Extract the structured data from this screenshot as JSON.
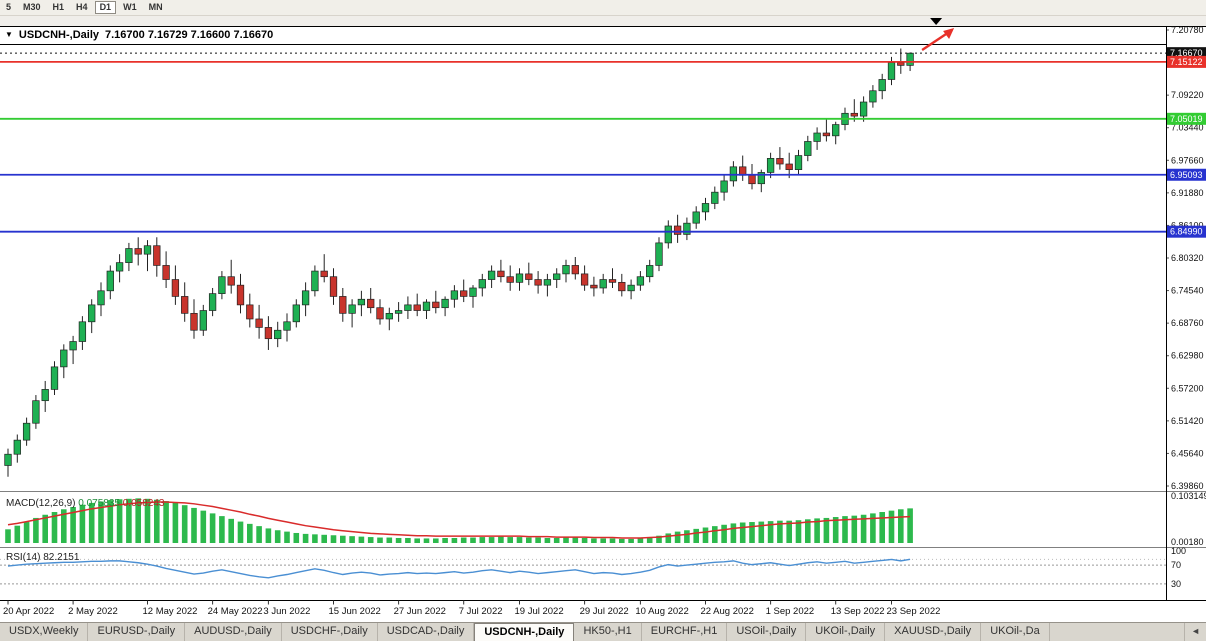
{
  "toolbar": {
    "timeframes": [
      "5",
      "M30",
      "H1",
      "H4",
      "D1",
      "W1",
      "MN"
    ],
    "active": "D1"
  },
  "chart": {
    "title": "USDCNH-,Daily",
    "ohlc": "7.16700 7.16729 7.16600 7.16670",
    "dropdown_icon": "▼"
  },
  "chart_data": {
    "type": "candlestick",
    "symbol": "USDCNH-,Daily",
    "open": 7.167,
    "high": 7.16729,
    "low": 7.166,
    "close": 7.1667,
    "y_range": [
      6.3986,
      7.2078
    ],
    "y_axis_labels": [
      "7.20780",
      "7.09220",
      "7.03440",
      "6.97660",
      "6.91880",
      "6.86100",
      "6.80320",
      "6.74540",
      "6.68760",
      "6.62980",
      "6.57200",
      "6.51420",
      "6.45640",
      "6.39860"
    ],
    "colors": {
      "up": "#1eb053",
      "down": "#c8342c",
      "outline": "#222222",
      "macd_hist": "#2db94d",
      "macd_signal": "#d92b2b",
      "rsi": "#4a8fd3",
      "arrow": "#e8312a"
    },
    "price_lines": [
      {
        "name": "current-price-line",
        "price": 7.1667,
        "label": "7.16670",
        "color": "#111111",
        "style": "dotted"
      },
      {
        "name": "resistance-line",
        "price": 7.15122,
        "label": "7.15122",
        "color": "#e8312a",
        "style": "solid"
      },
      {
        "name": "support-line-green",
        "price": 7.05019,
        "label": "7.05019",
        "color": "#33cc33",
        "style": "solid"
      },
      {
        "name": "support-line-blue-1",
        "price": 6.95093,
        "label": "6.95093",
        "color": "#2733cf",
        "style": "solid"
      },
      {
        "name": "support-line-blue-2",
        "price": 6.8499,
        "label": "6.84990",
        "color": "#2733cf",
        "style": "solid"
      }
    ],
    "candles": [
      [
        6.435,
        6.465,
        6.415,
        6.455
      ],
      [
        6.455,
        6.49,
        6.44,
        6.48
      ],
      [
        6.48,
        6.52,
        6.47,
        6.51
      ],
      [
        6.51,
        6.56,
        6.5,
        6.55
      ],
      [
        6.55,
        6.585,
        6.53,
        6.57
      ],
      [
        6.57,
        6.62,
        6.56,
        6.61
      ],
      [
        6.61,
        6.65,
        6.59,
        6.64
      ],
      [
        6.64,
        6.665,
        6.615,
        6.655
      ],
      [
        6.655,
        6.7,
        6.64,
        6.69
      ],
      [
        6.69,
        6.73,
        6.67,
        6.72
      ],
      [
        6.72,
        6.76,
        6.7,
        6.745
      ],
      [
        6.745,
        6.79,
        6.73,
        6.78
      ],
      [
        6.78,
        6.81,
        6.76,
        6.795
      ],
      [
        6.795,
        6.83,
        6.78,
        6.82
      ],
      [
        6.82,
        6.84,
        6.79,
        6.81
      ],
      [
        6.81,
        6.835,
        6.78,
        6.825
      ],
      [
        6.825,
        6.84,
        6.77,
        6.79
      ],
      [
        6.79,
        6.815,
        6.75,
        6.765
      ],
      [
        6.765,
        6.79,
        6.72,
        6.735
      ],
      [
        6.735,
        6.76,
        6.69,
        6.705
      ],
      [
        6.705,
        6.73,
        6.66,
        6.675
      ],
      [
        6.675,
        6.72,
        6.665,
        6.71
      ],
      [
        6.71,
        6.75,
        6.7,
        6.74
      ],
      [
        6.74,
        6.78,
        6.73,
        6.77
      ],
      [
        6.77,
        6.8,
        6.74,
        6.755
      ],
      [
        6.755,
        6.775,
        6.705,
        6.72
      ],
      [
        6.72,
        6.74,
        6.68,
        6.695
      ],
      [
        6.695,
        6.72,
        6.66,
        6.68
      ],
      [
        6.68,
        6.7,
        6.64,
        6.66
      ],
      [
        6.66,
        6.69,
        6.645,
        6.675
      ],
      [
        6.675,
        6.705,
        6.655,
        6.69
      ],
      [
        6.69,
        6.73,
        6.68,
        6.72
      ],
      [
        6.72,
        6.76,
        6.7,
        6.745
      ],
      [
        6.745,
        6.79,
        6.735,
        6.78
      ],
      [
        6.78,
        6.81,
        6.76,
        6.77
      ],
      [
        6.77,
        6.785,
        6.72,
        6.735
      ],
      [
        6.735,
        6.75,
        6.69,
        6.705
      ],
      [
        6.705,
        6.73,
        6.68,
        6.72
      ],
      [
        6.72,
        6.745,
        6.7,
        6.73
      ],
      [
        6.73,
        6.75,
        6.705,
        6.715
      ],
      [
        6.715,
        6.73,
        6.685,
        6.695
      ],
      [
        6.695,
        6.715,
        6.675,
        6.705
      ],
      [
        6.705,
        6.725,
        6.69,
        6.71
      ],
      [
        6.71,
        6.735,
        6.695,
        6.72
      ],
      [
        6.72,
        6.74,
        6.7,
        6.71
      ],
      [
        6.71,
        6.73,
        6.695,
        6.725
      ],
      [
        6.725,
        6.745,
        6.705,
        6.715
      ],
      [
        6.715,
        6.735,
        6.7,
        6.73
      ],
      [
        6.73,
        6.755,
        6.715,
        6.745
      ],
      [
        6.745,
        6.765,
        6.725,
        6.735
      ],
      [
        6.735,
        6.755,
        6.715,
        6.75
      ],
      [
        6.75,
        6.775,
        6.735,
        6.765
      ],
      [
        6.765,
        6.79,
        6.75,
        6.78
      ],
      [
        6.78,
        6.8,
        6.76,
        6.77
      ],
      [
        6.77,
        6.79,
        6.745,
        6.76
      ],
      [
        6.76,
        6.785,
        6.745,
        6.775
      ],
      [
        6.775,
        6.795,
        6.755,
        6.765
      ],
      [
        6.765,
        6.78,
        6.74,
        6.755
      ],
      [
        6.755,
        6.775,
        6.735,
        6.765
      ],
      [
        6.765,
        6.785,
        6.75,
        6.775
      ],
      [
        6.775,
        6.8,
        6.76,
        6.79
      ],
      [
        6.79,
        6.805,
        6.765,
        6.775
      ],
      [
        6.775,
        6.79,
        6.745,
        6.755
      ],
      [
        6.755,
        6.77,
        6.735,
        6.75
      ],
      [
        6.75,
        6.775,
        6.74,
        6.765
      ],
      [
        6.765,
        6.785,
        6.75,
        6.76
      ],
      [
        6.76,
        6.775,
        6.735,
        6.745
      ],
      [
        6.745,
        6.765,
        6.73,
        6.755
      ],
      [
        6.755,
        6.78,
        6.745,
        6.77
      ],
      [
        6.77,
        6.8,
        6.76,
        6.79
      ],
      [
        6.79,
        6.84,
        6.78,
        6.83
      ],
      [
        6.83,
        6.87,
        6.82,
        6.86
      ],
      [
        6.86,
        6.88,
        6.83,
        6.845
      ],
      [
        6.845,
        6.875,
        6.835,
        6.865
      ],
      [
        6.865,
        6.895,
        6.855,
        6.885
      ],
      [
        6.885,
        6.91,
        6.87,
        6.9
      ],
      [
        6.9,
        6.93,
        6.89,
        6.92
      ],
      [
        6.92,
        6.95,
        6.905,
        6.94
      ],
      [
        6.94,
        6.975,
        6.93,
        6.965
      ],
      [
        6.965,
        6.985,
        6.94,
        6.95
      ],
      [
        6.95,
        6.97,
        6.925,
        6.935
      ],
      [
        6.935,
        6.96,
        6.92,
        6.955
      ],
      [
        6.955,
        6.99,
        6.945,
        6.98
      ],
      [
        6.98,
        7.0,
        6.96,
        6.97
      ],
      [
        6.97,
        6.99,
        6.945,
        6.96
      ],
      [
        6.96,
        6.995,
        6.95,
        6.985
      ],
      [
        6.985,
        7.02,
        6.975,
        7.01
      ],
      [
        7.01,
        7.035,
        6.995,
        7.025
      ],
      [
        7.025,
        7.05,
        7.01,
        7.02
      ],
      [
        7.02,
        7.045,
        7.005,
        7.04
      ],
      [
        7.04,
        7.07,
        7.03,
        7.06
      ],
      [
        7.06,
        7.085,
        7.045,
        7.055
      ],
      [
        7.055,
        7.09,
        7.045,
        7.08
      ],
      [
        7.08,
        7.11,
        7.07,
        7.1
      ],
      [
        7.1,
        7.13,
        7.085,
        7.12
      ],
      [
        7.12,
        7.16,
        7.11,
        7.15
      ],
      [
        7.15,
        7.175,
        7.13,
        7.145
      ],
      [
        7.145,
        7.168,
        7.135,
        7.1667
      ]
    ],
    "date_labels": [
      {
        "i": 0,
        "label": "20 Apr 2022"
      },
      {
        "i": 7,
        "label": "2 May 2022"
      },
      {
        "i": 15,
        "label": "12 May 2022"
      },
      {
        "i": 22,
        "label": "24 May 2022"
      },
      {
        "i": 28,
        "label": "3 Jun 2022"
      },
      {
        "i": 35,
        "label": "15 Jun 2022"
      },
      {
        "i": 42,
        "label": "27 Jun 2022"
      },
      {
        "i": 49,
        "label": "7 Jul 2022"
      },
      {
        "i": 55,
        "label": "19 Jul 2022"
      },
      {
        "i": 62,
        "label": "29 Jul 2022"
      },
      {
        "i": 68,
        "label": "10 Aug 2022"
      },
      {
        "i": 75,
        "label": "22 Aug 2022"
      },
      {
        "i": 82,
        "label": "1 Sep 2022"
      },
      {
        "i": 89,
        "label": "13 Sep 2022"
      },
      {
        "i": 95,
        "label": "23 Sep 2022"
      }
    ],
    "macd": {
      "label": "MACD(12,26,9)",
      "value_main": "0.075835",
      "value_signal": "0.058243",
      "scale_max": 0.103149,
      "axis_labels": [
        {
          "text": "0.103149",
          "value": 0.103149
        },
        {
          "text": "0.00180",
          "value": 0.0018
        }
      ],
      "hist": [
        0.03,
        0.038,
        0.046,
        0.055,
        0.062,
        0.068,
        0.074,
        0.079,
        0.084,
        0.088,
        0.091,
        0.094,
        0.096,
        0.097,
        0.098,
        0.097,
        0.095,
        0.092,
        0.088,
        0.083,
        0.077,
        0.071,
        0.065,
        0.059,
        0.053,
        0.047,
        0.042,
        0.037,
        0.032,
        0.028,
        0.025,
        0.022,
        0.02,
        0.019,
        0.018,
        0.017,
        0.016,
        0.015,
        0.014,
        0.013,
        0.012,
        0.012,
        0.011,
        0.011,
        0.01,
        0.01,
        0.01,
        0.011,
        0.011,
        0.012,
        0.012,
        0.013,
        0.013,
        0.014,
        0.013,
        0.013,
        0.012,
        0.012,
        0.011,
        0.011,
        0.012,
        0.012,
        0.011,
        0.01,
        0.01,
        0.01,
        0.009,
        0.009,
        0.01,
        0.012,
        0.016,
        0.021,
        0.025,
        0.028,
        0.031,
        0.034,
        0.037,
        0.04,
        0.043,
        0.045,
        0.046,
        0.047,
        0.048,
        0.049,
        0.049,
        0.05,
        0.052,
        0.054,
        0.055,
        0.057,
        0.059,
        0.06,
        0.062,
        0.065,
        0.068,
        0.071,
        0.074,
        0.076
      ],
      "signal": [
        0.04,
        0.043,
        0.047,
        0.051,
        0.055,
        0.059,
        0.063,
        0.067,
        0.071,
        0.075,
        0.078,
        0.081,
        0.084,
        0.086,
        0.088,
        0.089,
        0.09,
        0.09,
        0.089,
        0.088,
        0.086,
        0.083,
        0.08,
        0.076,
        0.072,
        0.068,
        0.063,
        0.059,
        0.054,
        0.05,
        0.046,
        0.042,
        0.038,
        0.035,
        0.032,
        0.029,
        0.027,
        0.025,
        0.023,
        0.021,
        0.02,
        0.019,
        0.018,
        0.017,
        0.016,
        0.016,
        0.015,
        0.015,
        0.015,
        0.015,
        0.015,
        0.015,
        0.015,
        0.015,
        0.015,
        0.015,
        0.014,
        0.014,
        0.014,
        0.013,
        0.013,
        0.013,
        0.013,
        0.012,
        0.012,
        0.012,
        0.011,
        0.011,
        0.011,
        0.012,
        0.013,
        0.015,
        0.017,
        0.019,
        0.022,
        0.024,
        0.027,
        0.029,
        0.032,
        0.034,
        0.036,
        0.038,
        0.04,
        0.042,
        0.043,
        0.044,
        0.046,
        0.047,
        0.049,
        0.05,
        0.051,
        0.052,
        0.053,
        0.054,
        0.055,
        0.056,
        0.057,
        0.058
      ]
    },
    "rsi": {
      "label": "RSI(14)",
      "value": "82.2151",
      "current_level": 82.2151,
      "levels": [
        70,
        30
      ],
      "axis_labels": [
        {
          "text": "100",
          "value": 100
        },
        {
          "text": "70",
          "value": 70
        },
        {
          "text": "30",
          "value": 30
        }
      ],
      "values": [
        68,
        70,
        72,
        73,
        74,
        75,
        76,
        76,
        77,
        78,
        78,
        79,
        79,
        77,
        75,
        72,
        68,
        63,
        59,
        55,
        51,
        53,
        57,
        60,
        56,
        52,
        48,
        45,
        43,
        47,
        50,
        54,
        58,
        62,
        59,
        54,
        50,
        53,
        55,
        53,
        49,
        51,
        52,
        54,
        52,
        53,
        52,
        54,
        56,
        53,
        55,
        58,
        60,
        57,
        54,
        57,
        55,
        52,
        54,
        56,
        58,
        60,
        56,
        52,
        54,
        53,
        50,
        52,
        55,
        59,
        66,
        71,
        68,
        70,
        72,
        74,
        76,
        77,
        79,
        74,
        71,
        73,
        75,
        72,
        69,
        72,
        75,
        77,
        74,
        76,
        78,
        74,
        76,
        78,
        80,
        82,
        79,
        82.2
      ]
    },
    "annotations": [
      {
        "type": "arrow-up-right",
        "color": "#e8312a"
      },
      {
        "type": "triangle-down-marker",
        "color": "#000000"
      }
    ]
  },
  "tabs": {
    "items": [
      "USDX,Weekly",
      "EURUSD-,Daily",
      "AUDUSD-,Daily",
      "USDCHF-,Daily",
      "USDCAD-,Daily",
      "USDCNH-,Daily",
      "HK50-,H1",
      "EURCHF-,H1",
      "USOil-,Daily",
      "UKOil-,Daily",
      "XAUUSD-,Daily",
      "UKOil-,Da"
    ],
    "active": "USDCNH-,Daily",
    "scroll_left": "◄"
  }
}
